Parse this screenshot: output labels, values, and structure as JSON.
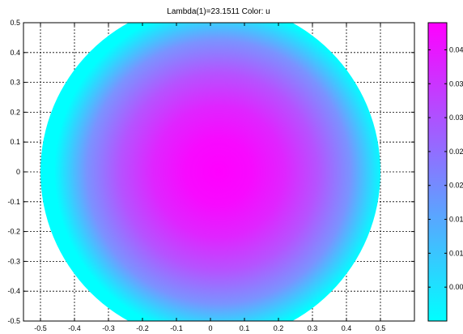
{
  "chart_data": {
    "type": "heatmap",
    "title": "Lambda(1)=23.1511    Color: u",
    "xlabel": "",
    "ylabel": "",
    "xlim": [
      -0.55,
      0.6
    ],
    "ylim": [
      -0.5,
      0.5
    ],
    "x_ticks": [
      "-0.5",
      "-0.4",
      "-0.3",
      "-0.2",
      "-0.1",
      "0",
      "0.1",
      "0.2",
      "0.3",
      "0.4",
      "0.5"
    ],
    "y_ticks": [
      "0.5",
      "0.4",
      "0.3",
      "0.2",
      "0.1",
      "0",
      "-0.1",
      "-0.2",
      "-0.3",
      "-0.4",
      "-0.5"
    ],
    "grid": true,
    "domain": {
      "shape": "disk",
      "center": [
        0,
        0
      ],
      "radius": 0.5
    },
    "field": {
      "name": "u",
      "min": 0,
      "max": 0.043,
      "center_value": 0.043,
      "boundary_value": 0
    },
    "colormap": {
      "low": "#00ffff",
      "high": "#ff00ff"
    },
    "colorbar": {
      "range": [
        0,
        0.044
      ],
      "ticks": [
        "0.04",
        "0.035",
        "0.03",
        "0.025",
        "0.02",
        "0.015",
        "0.01",
        "0.005"
      ]
    }
  }
}
